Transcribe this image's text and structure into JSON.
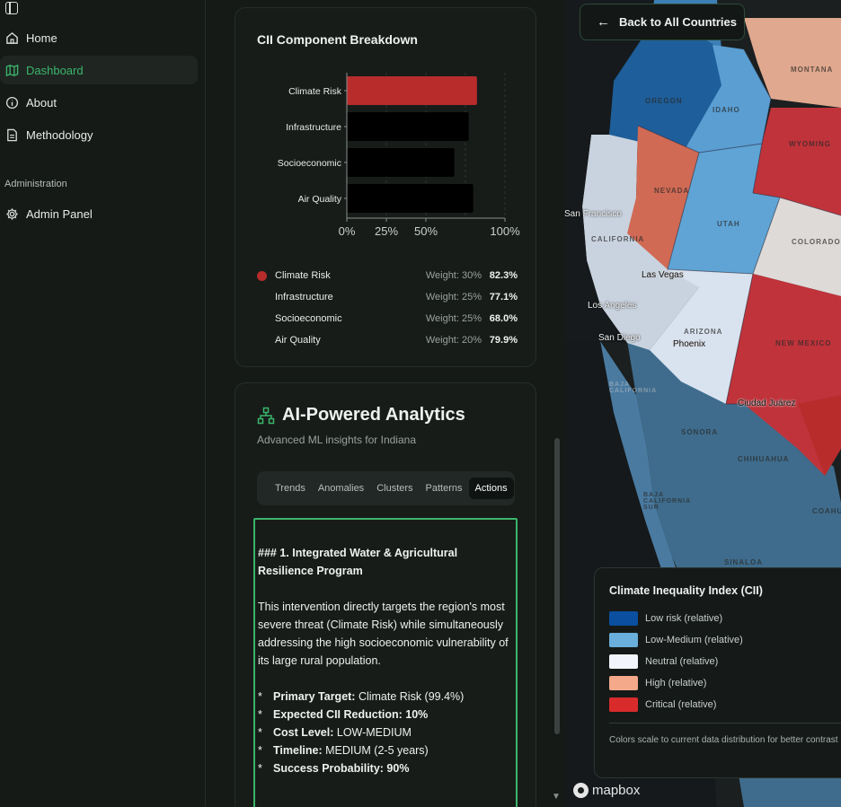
{
  "sidebar": {
    "nav": [
      {
        "label": "Home",
        "icon": "home-icon"
      },
      {
        "label": "Dashboard",
        "icon": "map-icon",
        "active": true
      },
      {
        "label": "About",
        "icon": "info-icon"
      },
      {
        "label": "Methodology",
        "icon": "document-icon"
      }
    ],
    "admin_section": "Administration",
    "admin_items": [
      {
        "label": "Admin Panel",
        "icon": "gear-icon"
      }
    ]
  },
  "breakdown": {
    "title": "CII Component Breakdown",
    "rows": [
      {
        "name": "Climate Risk",
        "weight": "Weight: 30%",
        "value": "82.3%",
        "color": "#b82c2c"
      },
      {
        "name": "Infrastructure",
        "weight": "Weight: 25%",
        "value": "77.1%",
        "color": "#000000"
      },
      {
        "name": "Socioeconomic",
        "weight": "Weight: 25%",
        "value": "68.0%",
        "color": "#000000"
      },
      {
        "name": "Air Quality",
        "weight": "Weight: 20%",
        "value": "79.9%",
        "color": "#000000"
      }
    ]
  },
  "chart_data": {
    "type": "bar",
    "orientation": "horizontal",
    "categories": [
      "Climate Risk",
      "Infrastructure",
      "Socioeconomic",
      "Air Quality"
    ],
    "values": [
      82.3,
      77.1,
      68.0,
      79.9
    ],
    "xticks": [
      "0%",
      "25%",
      "50%",
      "100%"
    ],
    "xtick_values": [
      0,
      25,
      50,
      100
    ],
    "xlim": [
      0,
      100
    ],
    "grid": true
  },
  "ai": {
    "title": "AI-Powered Analytics",
    "subtitle": "Advanced ML insights for Indiana",
    "tabs": [
      "Trends",
      "Anomalies",
      "Clusters",
      "Patterns",
      "Actions"
    ],
    "active_tab": "Actions",
    "heading": "### 1. Integrated Water & Agricultural Resilience Program",
    "paragraph": "This intervention directly targets the region's most severe threat (Climate Risk) while simultaneously addressing the high socioeconomic vulnerability of its large rural population.",
    "bullets": [
      {
        "key": "Primary Target:",
        "val": " Climate Risk (99.4%)"
      },
      {
        "key": "Expected CII Reduction: 10%",
        "val": ""
      },
      {
        "key": "Cost Level:",
        "val": " LOW-MEDIUM"
      },
      {
        "key": "Timeline:",
        "val": " MEDIUM (2-5 years)"
      },
      {
        "key": "Success Probability: 90%",
        "val": ""
      }
    ]
  },
  "map": {
    "back_label": "Back to All Countries",
    "legend_title": "Climate Inequality Index (CII)",
    "legend_items": [
      {
        "label": "Low risk (relative)",
        "color": "#0a4fa0"
      },
      {
        "label": "Low-Medium (relative)",
        "color": "#6aaedb"
      },
      {
        "label": "Neutral (relative)",
        "color": "#f2f5fb"
      },
      {
        "label": "High (relative)",
        "color": "#f4a98a"
      },
      {
        "label": "Critical (relative)",
        "color": "#d92b2b"
      }
    ],
    "legend_note": "Colors scale to current data distribution for better contrast",
    "attribution": "mapbox",
    "states": [
      "OREGON",
      "IDAHO",
      "MONTANA",
      "WYOMING",
      "NEVADA",
      "UTAH",
      "COLORADO",
      "CALIFORNIA",
      "ARIZONA",
      "NEW MEXICO",
      "SONORA",
      "CHIHUAHUA",
      "BAJA CALIFORNIA",
      "BAJA CALIFORNIA SUR",
      "SINALOA",
      "COAHUILA"
    ],
    "cities": [
      "San Francisco",
      "Las Vegas",
      "Los Angeles",
      "San Diego",
      "Phoenix",
      "Ciudad Juárez"
    ]
  }
}
